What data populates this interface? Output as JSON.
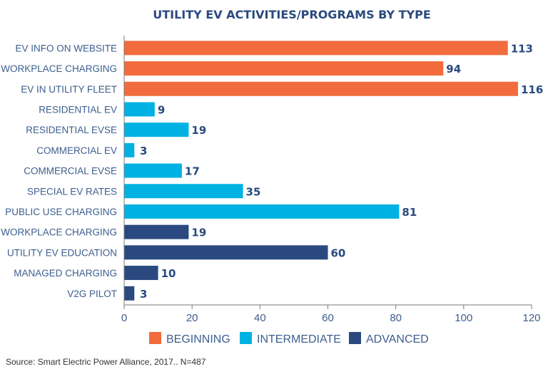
{
  "chart_data": {
    "type": "bar",
    "orientation": "horizontal",
    "title": "UTILITY EV ACTIVITIES/PROGRAMS BY TYPE",
    "categories": [
      "EV INFO ON WEBSITE",
      "WORKPLACE CHARGING",
      "EV IN UTILITY FLEET",
      "RESIDENTIAL EV",
      "RESIDENTIAL EVSE",
      "COMMERCIAL EV",
      "COMMERCIAL EVSE",
      "SPECIAL EV RATES",
      "PUBLIC USE CHARGING",
      "WORKPLACE CHARGING",
      "UTILITY EV EDUCATION",
      "MANAGED CHARGING",
      "V2G PILOT"
    ],
    "values": [
      113,
      94,
      116,
      9,
      19,
      3,
      17,
      35,
      81,
      19,
      60,
      10,
      3
    ],
    "groups": [
      "beginning",
      "beginning",
      "beginning",
      "intermediate",
      "intermediate",
      "intermediate",
      "intermediate",
      "intermediate",
      "intermediate",
      "advanced",
      "advanced",
      "advanced",
      "advanced"
    ],
    "legend": [
      {
        "key": "beginning",
        "name": "BEGINNING",
        "color": "#f26b3c"
      },
      {
        "key": "intermediate",
        "name": "INTERMEDIATE",
        "color": "#00b2e3"
      },
      {
        "key": "advanced",
        "name": "ADVANCED",
        "color": "#2a4a7f"
      }
    ],
    "xlim": [
      0,
      120
    ],
    "xticks": [
      0,
      20,
      40,
      60,
      80,
      100,
      120
    ],
    "grid": false,
    "legend_position": "bottom",
    "source": "Source: Smart Electric Power Alliance, 2017.. N=487"
  }
}
